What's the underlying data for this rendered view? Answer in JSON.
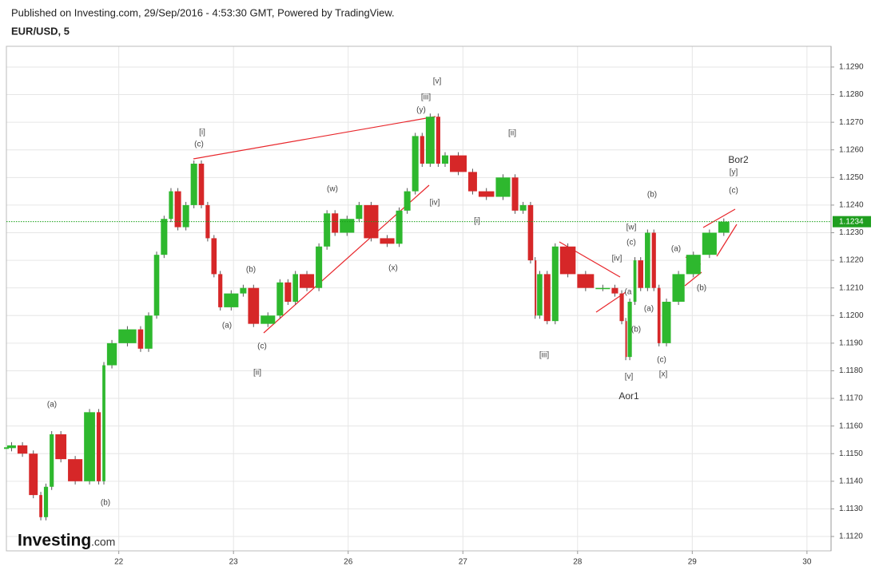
{
  "header": {
    "published": "Published on Investing.com, 29/Sep/2016 - 4:53:30 GMT, Powered by TradingView.",
    "symbol": "EUR/USD, 5"
  },
  "logo": {
    "brand": "Investing",
    "suffix": ".com"
  },
  "chart_data": {
    "type": "candlestick",
    "x": [
      0.02,
      0.11,
      0.21,
      0.3,
      0.34,
      0.39,
      0.44,
      0.55,
      0.69,
      0.8,
      0.85,
      0.89,
      0.99,
      1.16,
      1.22,
      1.3,
      1.36,
      1.43,
      1.48,
      1.55,
      1.62,
      1.69,
      1.75,
      1.8,
      1.86,
      1.91,
      2.05,
      2.12,
      2.23,
      2.37,
      2.44,
      2.51,
      2.57,
      2.71,
      2.78,
      2.85,
      2.92,
      3.06,
      3.13,
      3.27,
      3.41,
      3.48,
      3.55,
      3.62,
      3.67,
      3.76,
      3.81,
      3.88,
      4.04,
      4.13,
      4.28,
      4.42,
      4.49,
      4.56,
      4.62,
      4.64,
      4.7,
      4.77,
      4.84,
      4.99,
      5.15,
      5.29,
      5.36,
      5.41,
      5.43,
      5.48,
      5.52,
      5.58,
      5.64,
      5.69,
      5.73,
      5.82,
      5.94,
      6.08,
      6.22,
      6.33
    ],
    "values": [
      1.1152,
      1.1153,
      1.115,
      1.1135,
      1.1127,
      1.1138,
      1.1157,
      1.1148,
      1.114,
      1.1165,
      1.114,
      1.1182,
      1.119,
      1.1195,
      1.1188,
      1.12,
      1.1222,
      1.1235,
      1.1245,
      1.1232,
      1.124,
      1.1255,
      1.124,
      1.1228,
      1.1215,
      1.1203,
      1.1208,
      1.121,
      1.1197,
      1.12,
      1.1212,
      1.1205,
      1.1215,
      1.121,
      1.1225,
      1.1237,
      1.123,
      1.1235,
      1.124,
      1.1228,
      1.1226,
      1.1238,
      1.1245,
      1.1265,
      1.1255,
      1.1272,
      1.1255,
      1.1258,
      1.1252,
      1.1245,
      1.1243,
      1.125,
      1.1238,
      1.124,
      1.122,
      1.12,
      1.1215,
      1.1198,
      1.1225,
      1.1215,
      1.121,
      1.121,
      1.1208,
      1.1198,
      1.1185,
      1.1205,
      1.122,
      1.121,
      1.123,
      1.121,
      1.119,
      1.1205,
      1.1215,
      1.1222,
      1.123,
      1.1234
    ],
    "up_color": "#2eb82e",
    "down_color": "#d62728",
    "last_price": 1.1234,
    "xlim": [
      0.02,
      7.21
    ],
    "xticks": [
      {
        "value": 1,
        "label": "22"
      },
      {
        "value": 2,
        "label": "23"
      },
      {
        "value": 3,
        "label": "26"
      },
      {
        "value": 4,
        "label": "27"
      },
      {
        "value": 5,
        "label": "28"
      },
      {
        "value": 6,
        "label": "29"
      },
      {
        "value": 7,
        "label": "30"
      }
    ],
    "ylim": [
      1.11148,
      1.12975
    ],
    "yticks": [
      {
        "value": 1.112,
        "label": "1.1120"
      },
      {
        "value": 1.113,
        "label": "1.1130"
      },
      {
        "value": 1.114,
        "label": "1.1140"
      },
      {
        "value": 1.115,
        "label": "1.1150"
      },
      {
        "value": 1.116,
        "label": "1.1160"
      },
      {
        "value": 1.117,
        "label": "1.1170"
      },
      {
        "value": 1.118,
        "label": "1.1180"
      },
      {
        "value": 1.119,
        "label": "1.1190"
      },
      {
        "value": 1.12,
        "label": "1.1200"
      },
      {
        "value": 1.121,
        "label": "1.1210"
      },
      {
        "value": 1.122,
        "label": "1.1220"
      },
      {
        "value": 1.123,
        "label": "1.1230"
      },
      {
        "value": 1.124,
        "label": "1.1240"
      },
      {
        "value": 1.125,
        "label": "1.1250"
      },
      {
        "value": 1.126,
        "label": "1.1260"
      },
      {
        "value": 1.127,
        "label": "1.1270"
      },
      {
        "value": 1.128,
        "label": "1.1280"
      },
      {
        "value": 1.129,
        "label": "1.1290"
      }
    ],
    "grid": true,
    "annotations": [
      "[i]",
      "(c)",
      "[v]",
      "[iii]",
      "(y)",
      "[ii]",
      "(w)",
      "[iv]",
      "[i]",
      "(b)",
      "(a)",
      "(c)",
      "[ii]",
      "(x)",
      "(a)",
      "(b)",
      "[iii]",
      "(b)",
      "[w]",
      "(c)",
      "[iv]",
      "(a",
      "(a)",
      "(b)",
      "(c)",
      "[v]",
      "[x]",
      "Aor1",
      "(a)",
      "(b)",
      "Bor2",
      "[y]",
      "(c)"
    ]
  }
}
